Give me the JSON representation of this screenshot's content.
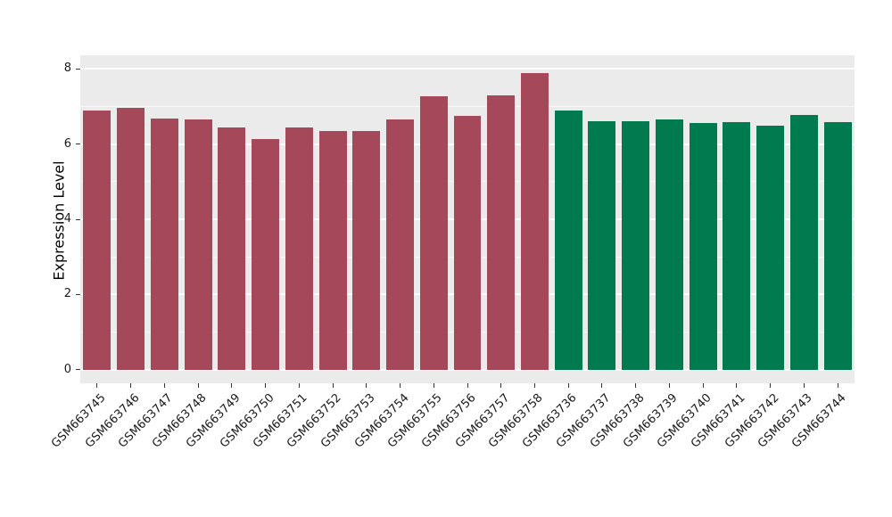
{
  "chart_data": {
    "type": "bar",
    "title": "",
    "xlabel": "",
    "ylabel": "Expression Level",
    "ylim": [
      0,
      8
    ],
    "yticks": [
      0,
      2,
      4,
      6,
      8
    ],
    "yticks_minor": [
      1,
      3,
      5,
      7
    ],
    "grid": "on",
    "legend": "none",
    "panel_bg": "#EBEBEB",
    "grid_color": "#FFFFFF",
    "group_colors": {
      "group1": "#A4485A",
      "group2": "#027A50"
    },
    "bars": [
      {
        "label": "GSM663745",
        "value": 6.88,
        "group": "group1"
      },
      {
        "label": "GSM663746",
        "value": 6.97,
        "group": "group1"
      },
      {
        "label": "GSM663747",
        "value": 6.67,
        "group": "group1"
      },
      {
        "label": "GSM663748",
        "value": 6.66,
        "group": "group1"
      },
      {
        "label": "GSM663749",
        "value": 6.43,
        "group": "group1"
      },
      {
        "label": "GSM663750",
        "value": 6.13,
        "group": "group1"
      },
      {
        "label": "GSM663751",
        "value": 6.45,
        "group": "group1"
      },
      {
        "label": "GSM663752",
        "value": 6.35,
        "group": "group1"
      },
      {
        "label": "GSM663753",
        "value": 6.34,
        "group": "group1"
      },
      {
        "label": "GSM663754",
        "value": 6.65,
        "group": "group1"
      },
      {
        "label": "GSM663755",
        "value": 7.28,
        "group": "group1"
      },
      {
        "label": "GSM663756",
        "value": 6.74,
        "group": "group1"
      },
      {
        "label": "GSM663757",
        "value": 7.29,
        "group": "group1"
      },
      {
        "label": "GSM663758",
        "value": 7.88,
        "group": "group1"
      },
      {
        "label": "GSM663736",
        "value": 6.9,
        "group": "group2"
      },
      {
        "label": "GSM663737",
        "value": 6.61,
        "group": "group2"
      },
      {
        "label": "GSM663738",
        "value": 6.61,
        "group": "group2"
      },
      {
        "label": "GSM663739",
        "value": 6.65,
        "group": "group2"
      },
      {
        "label": "GSM663740",
        "value": 6.57,
        "group": "group2"
      },
      {
        "label": "GSM663741",
        "value": 6.58,
        "group": "group2"
      },
      {
        "label": "GSM663742",
        "value": 6.49,
        "group": "group2"
      },
      {
        "label": "GSM663743",
        "value": 6.77,
        "group": "group2"
      },
      {
        "label": "GSM663744",
        "value": 6.58,
        "group": "group2"
      }
    ]
  }
}
